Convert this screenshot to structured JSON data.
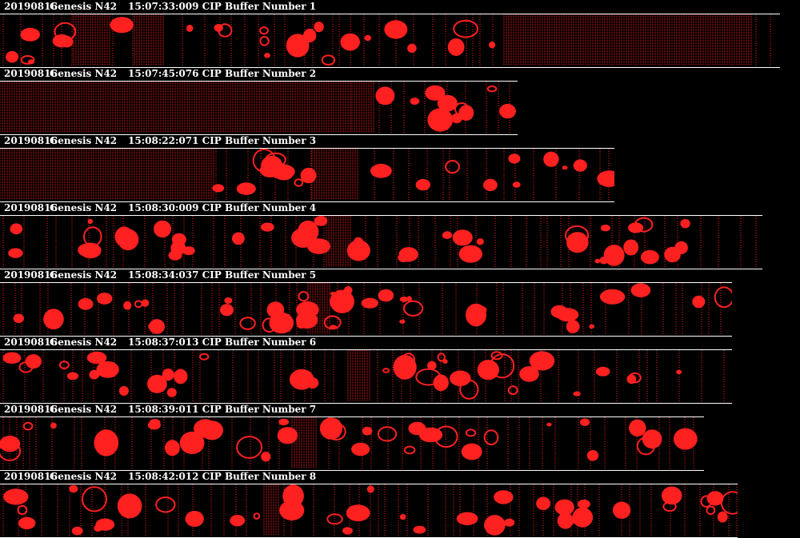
{
  "theme": {
    "background": "#000000",
    "particle_color": "#ff2020",
    "text_color": "#ffffff",
    "rule_color": "#ffffff"
  },
  "buffers": [
    {
      "date": "20190816",
      "probe": "Genesis N42",
      "info": "15:07:33:009 CIP Buffer Number 1"
    },
    {
      "date": "20190816",
      "probe": "Genesis N42",
      "info": "15:07:45:076 CIP Buffer Number 2"
    },
    {
      "date": "20190816",
      "probe": "Genesis N42",
      "info": "15:08:22:071 CIP Buffer Number 3"
    },
    {
      "date": "20190816",
      "probe": "Genesis N42",
      "info": "15:08:30:009 CIP Buffer Number 4"
    },
    {
      "date": "20190816",
      "probe": "Genesis N42",
      "info": "15:08:34:037 CIP Buffer Number 5"
    },
    {
      "date": "20190816",
      "probe": "Genesis N42",
      "info": "15:08:37:013 CIP Buffer Number 6"
    },
    {
      "date": "20190816",
      "probe": "Genesis N42",
      "info": "15:08:39:011 CIP Buffer Number 7"
    },
    {
      "date": "20190816",
      "probe": "Genesis N42",
      "info": "15:08:42:012 CIP Buffer Number 8"
    }
  ]
}
